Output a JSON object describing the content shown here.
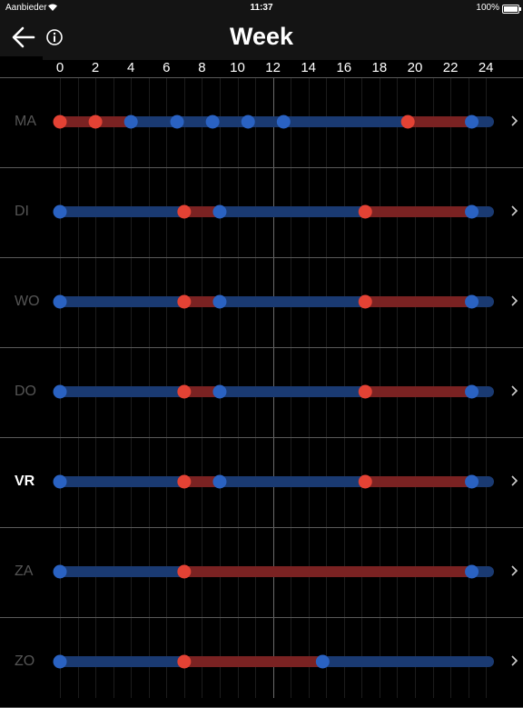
{
  "status_bar": {
    "carrier": "Aanbieder",
    "time": "11:37",
    "battery": "100%"
  },
  "header": {
    "title": "Week",
    "back_icon": "arrow-left-icon",
    "info_icon": "info-circle-icon"
  },
  "hour_ticks": [
    "0",
    "2",
    "4",
    "6",
    "8",
    "10",
    "12",
    "14",
    "16",
    "18",
    "20",
    "22",
    "24"
  ],
  "colors": {
    "blue_segment": "#1a3a72",
    "red_segment": "#7a2222",
    "blue_dot": "#2a62c2",
    "red_dot": "#e34234"
  },
  "days": [
    {
      "label": "MA",
      "active": false,
      "points": [
        [
          0,
          "red"
        ],
        [
          2,
          "red"
        ],
        [
          4,
          "blue"
        ],
        [
          6.6,
          "blue"
        ],
        [
          8.6,
          "blue"
        ],
        [
          10.6,
          "blue"
        ],
        [
          12.6,
          "blue"
        ],
        [
          19.6,
          "red"
        ],
        [
          23.2,
          "blue"
        ]
      ]
    },
    {
      "label": "DI",
      "active": false,
      "points": [
        [
          0,
          "blue"
        ],
        [
          7,
          "red"
        ],
        [
          9,
          "blue"
        ],
        [
          17.2,
          "red"
        ],
        [
          23.2,
          "blue"
        ]
      ]
    },
    {
      "label": "WO",
      "active": false,
      "points": [
        [
          0,
          "blue"
        ],
        [
          7,
          "red"
        ],
        [
          9,
          "blue"
        ],
        [
          17.2,
          "red"
        ],
        [
          23.2,
          "blue"
        ]
      ]
    },
    {
      "label": "DO",
      "active": false,
      "points": [
        [
          0,
          "blue"
        ],
        [
          7,
          "red"
        ],
        [
          9,
          "blue"
        ],
        [
          17.2,
          "red"
        ],
        [
          23.2,
          "blue"
        ]
      ]
    },
    {
      "label": "VR",
      "active": true,
      "points": [
        [
          0,
          "blue"
        ],
        [
          7,
          "red"
        ],
        [
          9,
          "blue"
        ],
        [
          17.2,
          "red"
        ],
        [
          23.2,
          "blue"
        ]
      ]
    },
    {
      "label": "ZA",
      "active": false,
      "points": [
        [
          0,
          "blue"
        ],
        [
          7,
          "red"
        ],
        [
          23.2,
          "blue"
        ]
      ]
    },
    {
      "label": "ZO",
      "active": false,
      "points": [
        [
          0,
          "blue"
        ],
        [
          7,
          "red"
        ],
        [
          14.8,
          "blue"
        ]
      ]
    }
  ]
}
